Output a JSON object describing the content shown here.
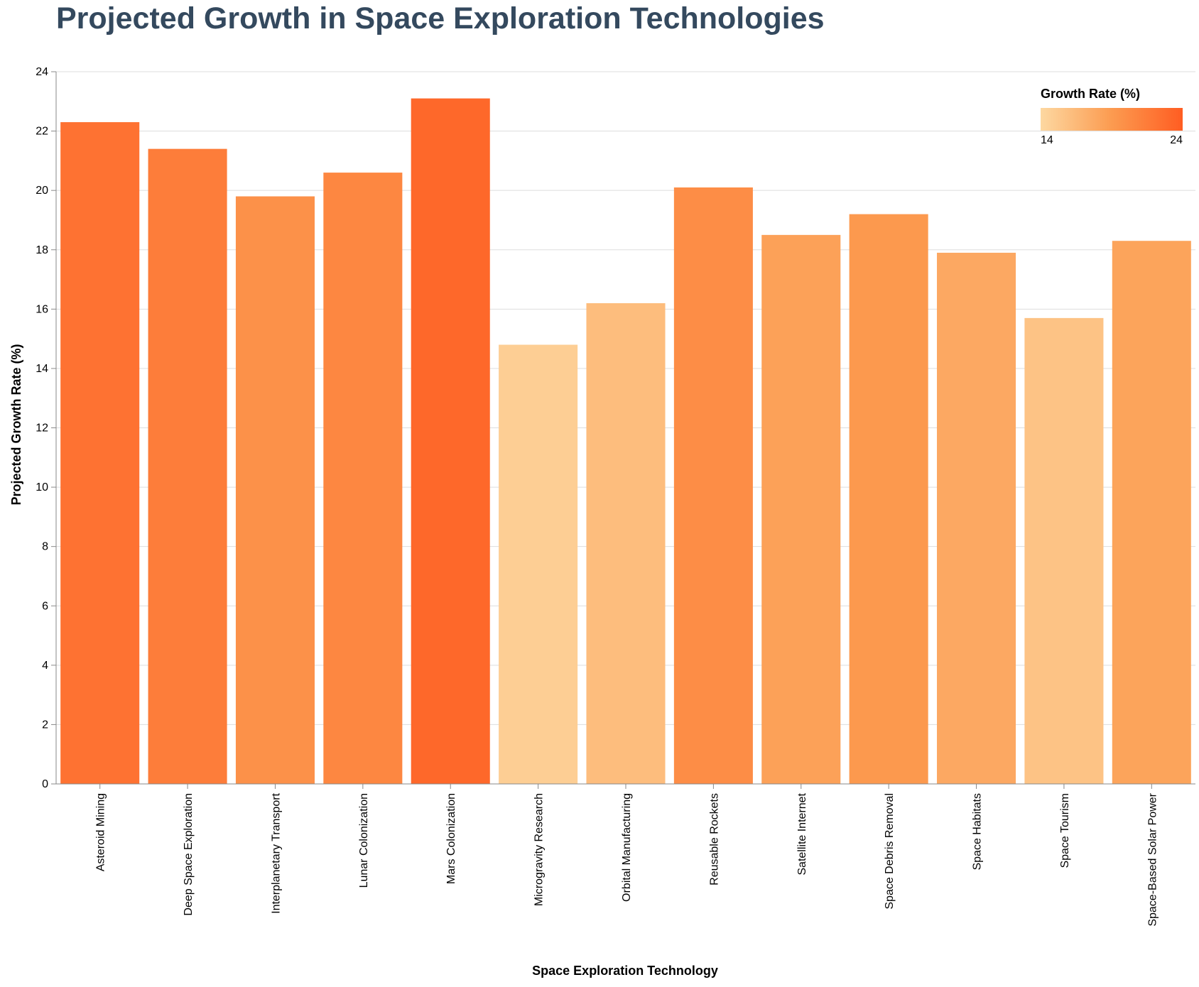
{
  "chart_data": {
    "type": "bar",
    "title": "Projected Growth in Space Exploration Technologies",
    "xlabel": "Space Exploration Technology",
    "ylabel": "Projected Growth Rate (%)",
    "ylim": [
      0,
      24
    ],
    "y_ticks": [
      0,
      2,
      4,
      6,
      8,
      10,
      12,
      14,
      16,
      18,
      20,
      22,
      24
    ],
    "grid": true,
    "categories": [
      "Asteroid Mining",
      "Deep Space Exploration",
      "Interplanetary Transport",
      "Lunar Colonization",
      "Mars Colonization",
      "Microgravity Research",
      "Orbital Manufacturing",
      "Reusable Rockets",
      "Satellite Internet",
      "Space Debris Removal",
      "Space Habitats",
      "Space Tourism",
      "Space-Based Solar Power"
    ],
    "values": [
      22.3,
      21.4,
      19.8,
      20.6,
      23.1,
      14.8,
      16.2,
      20.1,
      18.5,
      19.2,
      17.9,
      15.7,
      18.3
    ],
    "legend": {
      "title": "Growth Rate (%)",
      "min_label": "14",
      "max_label": "24",
      "domain": [
        14,
        24
      ],
      "placement": "top-right"
    },
    "colors": {
      "scale_low": "#fdd8a1",
      "scale_mid": "#fc9b50",
      "scale_high": "#ff5d22",
      "title": "#34495e",
      "grid": "#dddddd",
      "axis": "#888888"
    }
  }
}
